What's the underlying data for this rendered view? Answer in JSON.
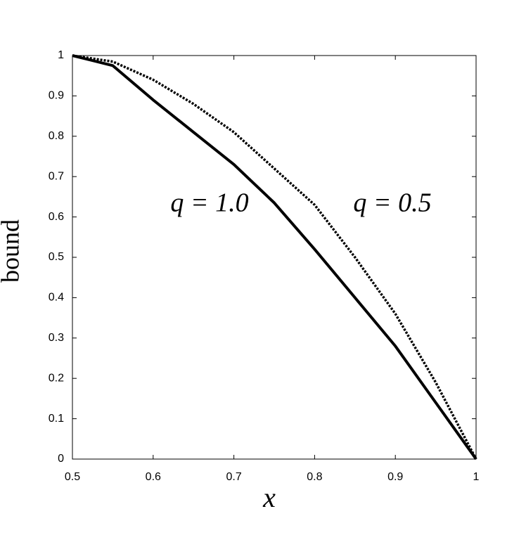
{
  "chart_data": {
    "type": "line",
    "x": [
      0.5,
      0.55,
      0.6,
      0.65,
      0.7,
      0.75,
      0.8,
      0.85,
      0.9,
      0.95,
      1
    ],
    "series": [
      {
        "name": "q = 1.0",
        "color": "#000000",
        "style": "solid",
        "values": [
          1,
          0.975,
          0.89,
          0.81,
          0.73,
          0.635,
          0.52,
          0.4,
          0.28,
          0.14,
          0
        ]
      },
      {
        "name": "q = 0.5",
        "color": "#000000",
        "style": "dotted",
        "values": [
          1,
          0.985,
          0.94,
          0.88,
          0.81,
          0.72,
          0.63,
          0.5,
          0.36,
          0.19,
          0
        ]
      }
    ],
    "xlabel": "x",
    "ylabel": "bound",
    "xlim": [
      0.5,
      1
    ],
    "ylim": [
      0,
      1
    ],
    "xticks": [
      0.5,
      0.6,
      0.7,
      0.8,
      0.9,
      1
    ],
    "yticks": [
      0,
      0.1,
      0.2,
      0.3,
      0.4,
      0.5,
      0.6,
      0.7,
      0.8,
      0.9,
      1
    ],
    "grid": false
  }
}
